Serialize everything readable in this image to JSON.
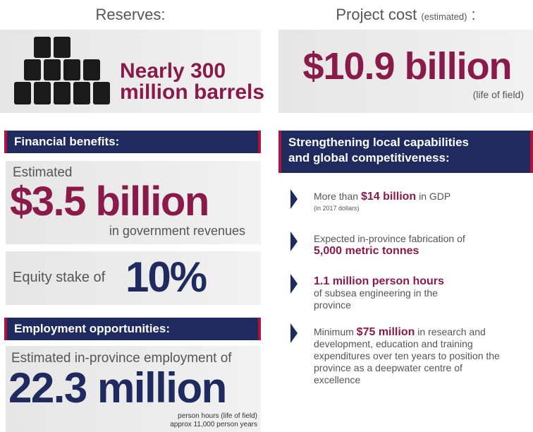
{
  "reserves": {
    "heading": "Reserves:",
    "line1": "Nearly 300",
    "line2": "million barrels"
  },
  "project_cost": {
    "heading": "Project cost",
    "heading_note": "(estimated)",
    "heading_colon": ":",
    "value": "$10.9 billion",
    "note": "(life of field)"
  },
  "financial": {
    "heading": "Financial benefits:",
    "estimated_label": "Estimated",
    "value": "$3.5 billion",
    "note": "in government revenues",
    "equity_label": "Equity stake of",
    "equity_value": "10%"
  },
  "employment": {
    "heading": "Employment opportunities:",
    "label": "Estimated in-province employment of",
    "value": "22.3 million",
    "note1": "person hours (life of field)",
    "note2": "approx 11,000 person years"
  },
  "capabilities": {
    "heading_lines": [
      "Strengthening local capabilities",
      "and global competitiveness:"
    ],
    "bullets": [
      {
        "before": "More than ",
        "highlight": "$14 billion",
        "after": " in GDP",
        "note": "(in 2017 dollars)"
      },
      {
        "before": "Expected in-province fabrication of",
        "highlight": "5,000 metric tonnes"
      },
      {
        "highlight": "1.1 million person hours",
        "after": "of subsea engineering in the province"
      },
      {
        "before": "Minimum ",
        "highlight": "$75 million",
        "after": " in research and development, education and training expenditures over ten years to position the province as a deepwater centre of excellence"
      }
    ]
  }
}
